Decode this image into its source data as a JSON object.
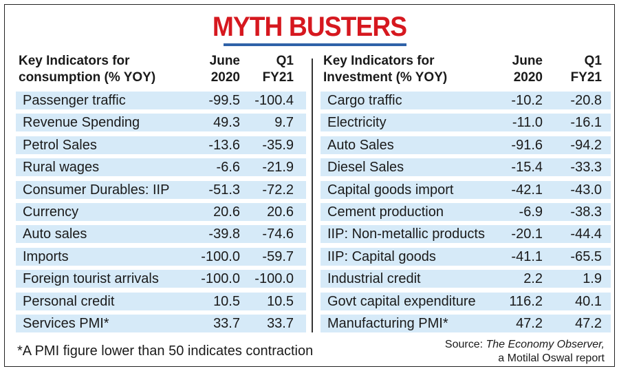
{
  "title": "MYTH BUSTERS",
  "left_table": {
    "label_line1": "Key Indicators for",
    "label_line2": "consumption (% YOY)",
    "col1_line1": "June",
    "col1_line2": "2020",
    "col2_line1": "Q1",
    "col2_line2": "FY21",
    "rows": [
      {
        "name": "Passenger traffic",
        "june": "-99.5",
        "q1": "-100.4"
      },
      {
        "name": "Revenue Spending",
        "june": "49.3",
        "q1": "9.7"
      },
      {
        "name": "Petrol Sales",
        "june": "-13.6",
        "q1": "-35.9"
      },
      {
        "name": "Rural wages",
        "june": "-6.6",
        "q1": "-21.9"
      },
      {
        "name": "Consumer Durables: IIP",
        "june": "-51.3",
        "q1": "-72.2"
      },
      {
        "name": "Currency",
        "june": "20.6",
        "q1": "20.6"
      },
      {
        "name": "Auto sales",
        "june": "-39.8",
        "q1": "-74.6"
      },
      {
        "name": "Imports",
        "june": "-100.0",
        "q1": "-59.7"
      },
      {
        "name": "Foreign tourist arrivals",
        "june": "-100.0",
        "q1": "-100.0"
      },
      {
        "name": "Personal credit",
        "june": "10.5",
        "q1": "10.5"
      },
      {
        "name": "Services PMI*",
        "june": "33.7",
        "q1": "33.7"
      }
    ]
  },
  "right_table": {
    "label_line1": "Key Indicators for",
    "label_line2": "Investment (% YOY)",
    "col1_line1": "June",
    "col1_line2": "2020",
    "col2_line1": "Q1",
    "col2_line2": "FY21",
    "rows": [
      {
        "name": "Cargo traffic",
        "june": "-10.2",
        "q1": "-20.8"
      },
      {
        "name": "Electricity",
        "june": "-11.0",
        "q1": "-16.1"
      },
      {
        "name": "Auto Sales",
        "june": "-91.6",
        "q1": "-94.2"
      },
      {
        "name": "Diesel Sales",
        "june": "-15.4",
        "q1": "-33.3"
      },
      {
        "name": "Capital goods import",
        "june": "-42.1",
        "q1": "-43.0"
      },
      {
        "name": "Cement production",
        "june": "-6.9",
        "q1": "-38.3"
      },
      {
        "name": "IIP: Non-metallic products",
        "june": "-20.1",
        "q1": "-44.4"
      },
      {
        "name": "IIP: Capital goods",
        "june": "-41.1",
        "q1": "-65.5"
      },
      {
        "name": "Industrial credit",
        "june": "2.2",
        "q1": "1.9"
      },
      {
        "name": "Govt capital expenditure",
        "june": "116.2",
        "q1": "40.1"
      },
      {
        "name": "Manufacturing PMI*",
        "june": "47.2",
        "q1": "47.2"
      }
    ]
  },
  "footnote": "*A PMI figure lower than 50 indicates contraction",
  "source": {
    "prefix": "Source: ",
    "publication": "The Economy Observer,",
    "line2": "a Motilal Oswal report"
  },
  "colors": {
    "title": "#d6181f",
    "title_rule": "#2f62a8",
    "row_fill": "#d6eaf8"
  }
}
